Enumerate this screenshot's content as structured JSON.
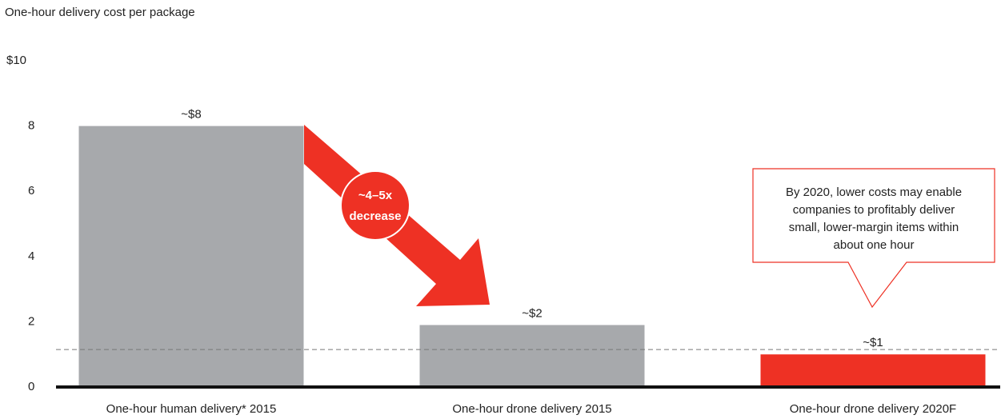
{
  "chart_data": {
    "type": "bar",
    "title": "One-hour delivery cost per package",
    "categories": [
      "One-hour human delivery* 2015",
      "One-hour drone delivery 2015",
      "One-hour drone delivery 2020F"
    ],
    "values": [
      8,
      1.9,
      1
    ],
    "value_labels": [
      "~$8",
      "~$2",
      "~$1"
    ],
    "colors": [
      "#a7a9ac",
      "#a7a9ac",
      "#ee3124"
    ],
    "ylim": [
      0,
      10
    ],
    "yticks": [
      0,
      2,
      4,
      6,
      8,
      {
        "value": 10,
        "label": "$10"
      }
    ],
    "reference_line": 1.15,
    "arrow_label": [
      "~4–5x",
      "decrease"
    ],
    "callout": [
      "By 2020, lower costs may enable",
      "companies to profitably deliver",
      "small, lower-margin items within",
      "about one hour"
    ]
  }
}
